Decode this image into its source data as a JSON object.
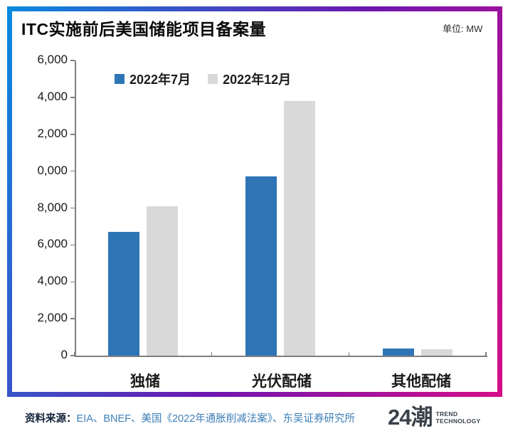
{
  "header": {
    "title": "ITC实施前后美国储能项目备案量",
    "unit_label": "单位: MW"
  },
  "chart_data": {
    "type": "bar",
    "title": "ITC实施前后美国储能项目备案量",
    "unit": "MW",
    "categories": [
      "独储",
      "光伏配储",
      "其他配储"
    ],
    "series": [
      {
        "name": "2022年7月",
        "color": "#2e75b6",
        "values": [
          6700,
          9700,
          400
        ]
      },
      {
        "name": "2022年12月",
        "color": "#d9d9d9",
        "values": [
          8100,
          13800,
          350
        ]
      }
    ],
    "ylim": [
      0,
      16000
    ],
    "ytick_step": 2000,
    "ytick_labels_shown": [
      "6,000",
      "4,000",
      "2,000",
      "0,000",
      "8,000",
      "6,000",
      "4,000",
      "2,000",
      "0"
    ],
    "legend_position": "top",
    "grid": false
  },
  "footer": {
    "source_label": "资料来源：",
    "source_text": "EIA、BNEF、美国《2022年通胀削减法案》、东吴证券研究所",
    "logo": {
      "text": "24潮",
      "sub_line1": "TREND",
      "sub_line2": "TECHNOLOGY"
    }
  },
  "colors": {
    "bar_july": "#2e75b6",
    "bar_december": "#d9d9d9",
    "border_gradient_start": "#0a8ade",
    "border_gradient_mid": "#6d16b0",
    "border_gradient_end": "#d50e88",
    "source_text_blue": "#3e7fb7",
    "axis_gray": "#7f7f7f"
  }
}
